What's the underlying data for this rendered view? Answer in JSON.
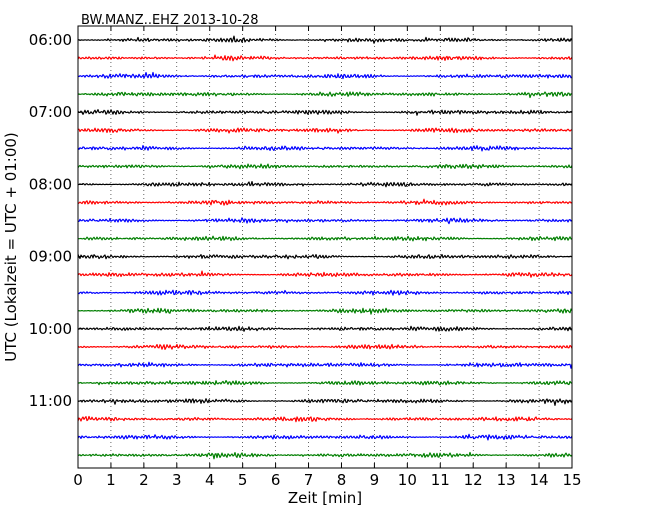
{
  "chart_data": {
    "type": "line",
    "title": "BW.MANZ..EHZ 2013-10-28",
    "xlabel": "Zeit  [min]",
    "ylabel": "UTC (Lokalzeit = UTC + 01:00)",
    "xlim": [
      0,
      15
    ],
    "x_ticks": [
      "0",
      "1",
      "2",
      "3",
      "4",
      "5",
      "6",
      "7",
      "8",
      "9",
      "10",
      "11",
      "12",
      "13",
      "14",
      "15"
    ],
    "hour_labels": [
      "06:00",
      "07:00",
      "08:00",
      "09:00",
      "10:00",
      "11:00"
    ],
    "traces_per_hour": 4,
    "trace_colors": [
      "#000000",
      "#ff0000",
      "#0000ff",
      "#007f00"
    ],
    "vertical_grid": true,
    "grid_style": "dotted",
    "series_note": "24 seismogram traces, 15 minutes each, from 06:00 to 12:00 UTC"
  }
}
